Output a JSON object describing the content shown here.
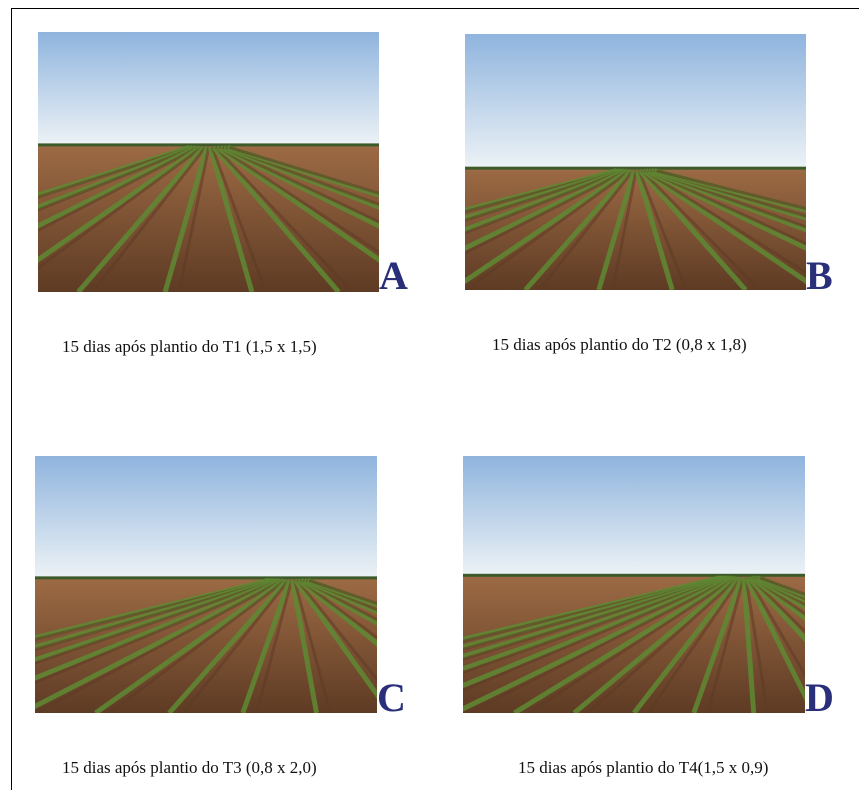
{
  "colors": {
    "label": "#2a2f7a",
    "sky_top": "#8fb4de",
    "sky_bottom": "#eef3f6",
    "soil": "#9c6a44",
    "soil_dark": "#5e3b24",
    "crop": "#5e8a33"
  },
  "panels": [
    {
      "id": "A",
      "letter": "A",
      "caption": "15 dias após plantio do T1 (1,5 x 1,5)"
    },
    {
      "id": "B",
      "letter": "B",
      "caption": "15 dias após plantio do T2 (0,8 x 1,8)"
    },
    {
      "id": "C",
      "letter": "C",
      "caption": "15 dias após plantio do T3 (0,8 x 2,0)"
    },
    {
      "id": "D",
      "letter": "D",
      "caption": "15 dias após plantio do T4(1,5 x 0,9)"
    }
  ]
}
